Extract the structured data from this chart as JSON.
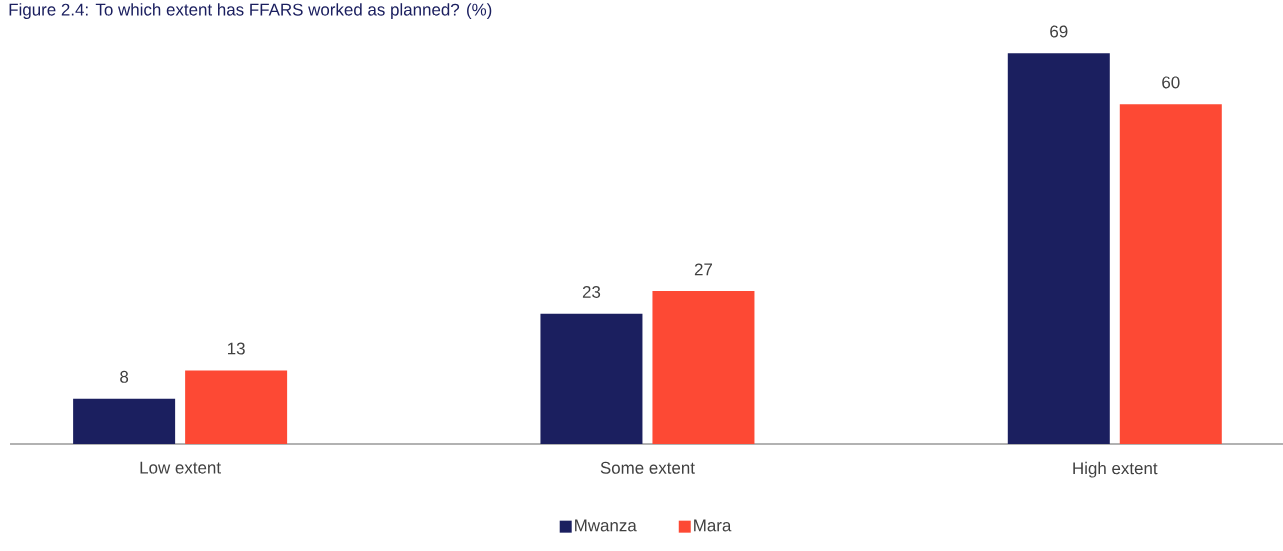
{
  "chart_data": {
    "type": "bar",
    "title": "Figure 2.4: To which extent has FFARS worked as planned? (%)",
    "categories": [
      "Low extent",
      "Some extent",
      "High extent"
    ],
    "series": [
      {
        "name": "Mwanza",
        "color": "#1b1f5f",
        "values": [
          8,
          23,
          69
        ]
      },
      {
        "name": "Mara",
        "color": "#fd4934",
        "values": [
          13,
          27,
          60
        ]
      }
    ],
    "data_labels": true,
    "legend": "bottom"
  }
}
